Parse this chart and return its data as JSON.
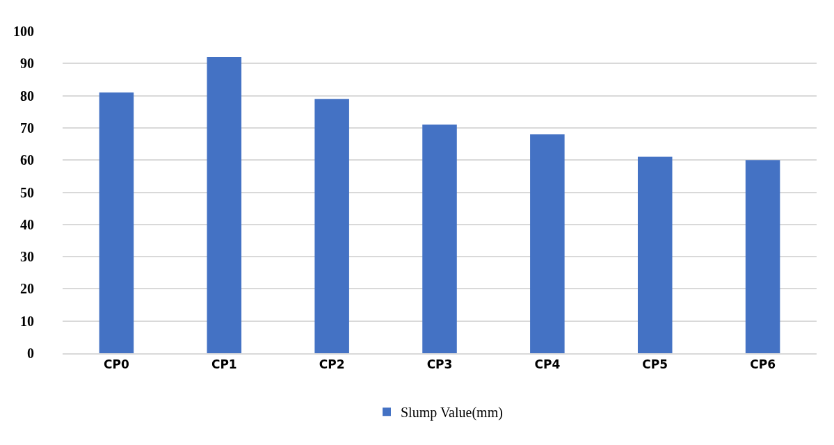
{
  "chart_data": {
    "type": "bar",
    "categories": [
      "CP0",
      "CP1",
      "CP2",
      "CP3",
      "CP4",
      "CP5",
      "CP6"
    ],
    "series": [
      {
        "name": "Slump Value(mm)",
        "color": "#4472c4",
        "values": [
          81,
          92,
          79,
          71,
          68,
          61,
          60
        ]
      }
    ],
    "ylim": [
      0,
      100
    ],
    "yticks": [
      0,
      10,
      20,
      30,
      40,
      50,
      60,
      70,
      80,
      90,
      100
    ],
    "grid": "y",
    "legend": "bottom"
  }
}
